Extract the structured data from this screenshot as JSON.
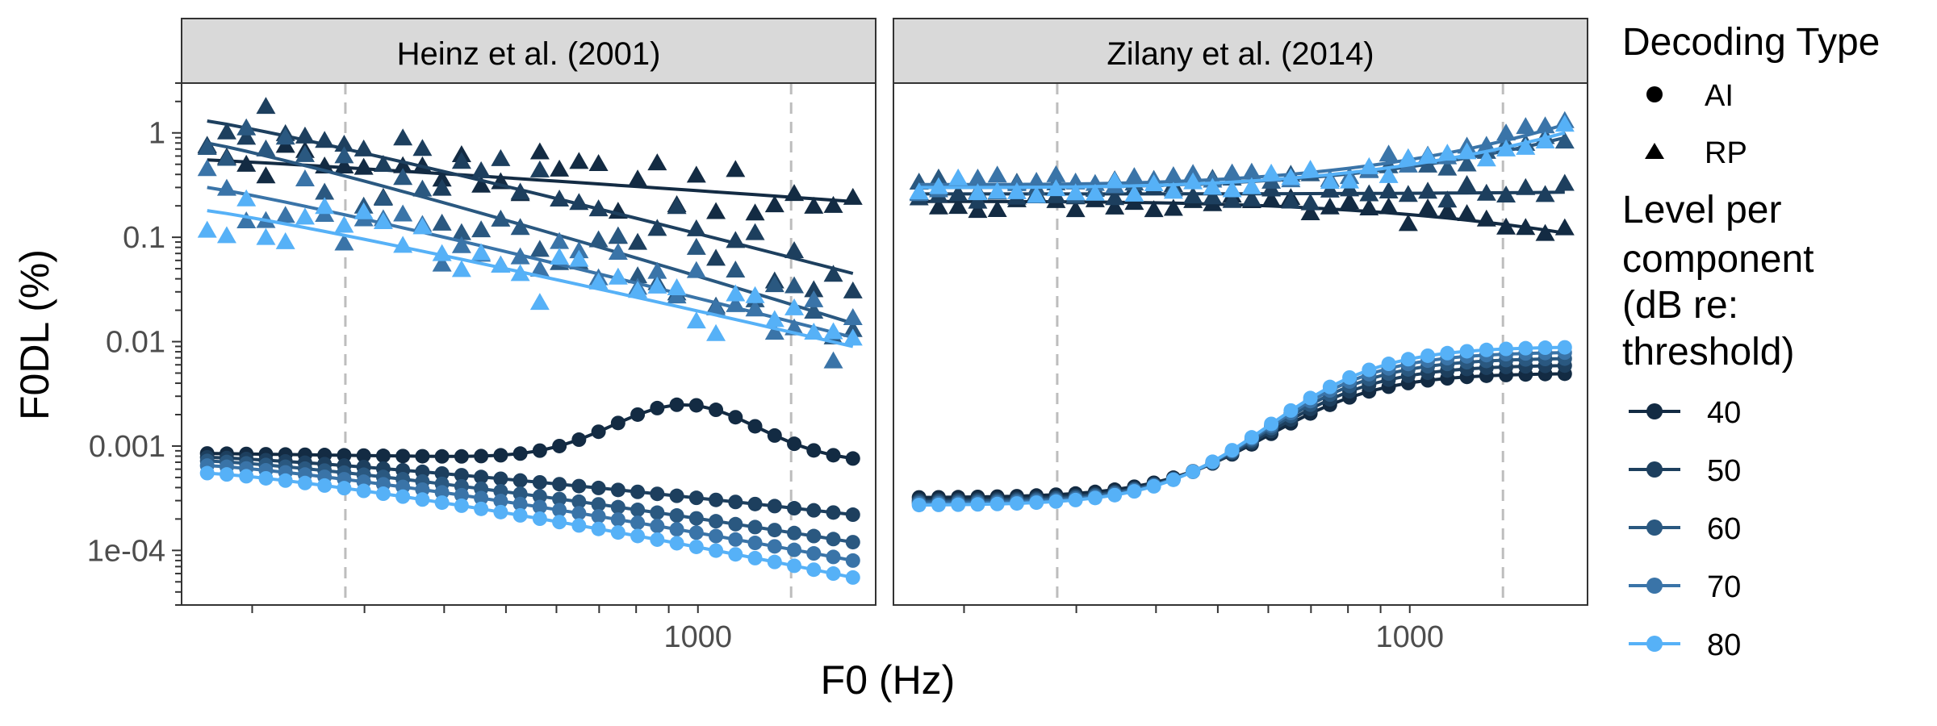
{
  "chart_data": {
    "type": "line",
    "xlabel": "F0 (Hz)",
    "ylabel": "F0DL (%)",
    "x_scale": "log",
    "y_scale": "log",
    "xlim": [
      155,
      1900
    ],
    "ylim": [
      3e-05,
      3
    ],
    "x_ticks": [
      1000
    ],
    "x_tick_labels": [
      "1000"
    ],
    "y_ticks": [
      0.0001,
      0.001,
      0.01,
      0.1,
      1
    ],
    "y_tick_labels": [
      "1e-04",
      "0.001",
      "0.01",
      "0.1",
      "1"
    ],
    "reference_lines_x": [
      280,
      1400
    ],
    "grid": false,
    "legend": {
      "placement": "right",
      "shape_title": "Decoding Type",
      "shape_entries": [
        "AI",
        "RP"
      ],
      "level_title_lines": [
        "Level per",
        "component",
        "(dB re:",
        "threshold)"
      ],
      "level_entries": [
        "40",
        "50",
        "60",
        "70",
        "80"
      ]
    },
    "level_colors": [
      "#132B43",
      "#1D3F5E",
      "#2A5880",
      "#3A74A8",
      "#56B1F7"
    ],
    "panels": [
      {
        "title": "Heinz et al. (2001)",
        "AI": [
          {
            "level": "40",
            "y_start": 0.00085,
            "y_end": 0.0007,
            "peak_y": 0.0025,
            "peak_x": 950
          },
          {
            "level": "50",
            "y_start": 0.00078,
            "y_end": 0.00022
          },
          {
            "level": "60",
            "y_start": 0.00072,
            "y_end": 0.00012
          },
          {
            "level": "70",
            "y_start": 0.00065,
            "y_end": 8e-05
          },
          {
            "level": "80",
            "y_start": 0.00055,
            "y_end": 5.5e-05
          }
        ],
        "RP": [
          {
            "level": "40",
            "y_start": 0.55,
            "y_end": 0.22
          },
          {
            "level": "50",
            "y_start": 1.3,
            "y_end": 0.045
          },
          {
            "level": "60",
            "y_start": 0.8,
            "y_end": 0.015
          },
          {
            "level": "70",
            "y_start": 0.3,
            "y_end": 0.011
          },
          {
            "level": "80",
            "y_start": 0.18,
            "y_end": 0.009
          }
        ]
      },
      {
        "title": "Zilany et al. (2014)",
        "AI": [
          {
            "level": "40",
            "y_start": 0.00032,
            "y_end": 0.005
          },
          {
            "level": "50",
            "y_start": 0.0003,
            "y_end": 0.006
          },
          {
            "level": "60",
            "y_start": 0.00029,
            "y_end": 0.007
          },
          {
            "level": "70",
            "y_start": 0.00028,
            "y_end": 0.008
          },
          {
            "level": "80",
            "y_start": 0.00027,
            "y_end": 0.009
          }
        ],
        "RP": [
          {
            "level": "40",
            "y_start": 0.22,
            "y_end": 0.11
          },
          {
            "level": "50",
            "y_start": 0.26,
            "y_end": 0.27
          },
          {
            "level": "60",
            "y_start": 0.3,
            "y_end": 0.9
          },
          {
            "level": "70",
            "y_start": 0.32,
            "y_end": 1.2
          },
          {
            "level": "80",
            "y_start": 0.3,
            "y_end": 1.0
          }
        ]
      }
    ]
  }
}
